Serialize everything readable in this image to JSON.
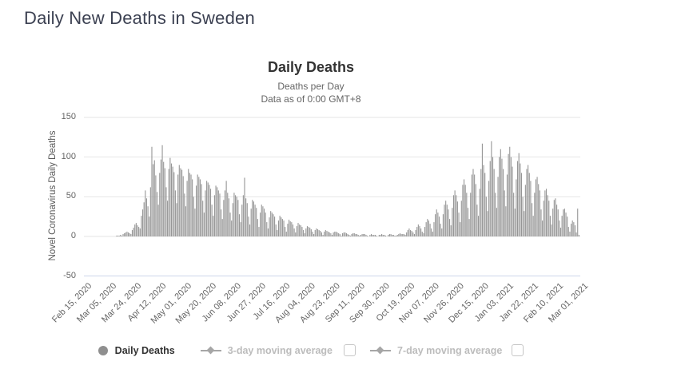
{
  "page": {
    "title": "Daily New Deaths in Sweden"
  },
  "chart": {
    "title": "Daily Deaths",
    "subtitle1": "Deaths per Day",
    "subtitle2": "Data as of 0:00 GMT+8",
    "y_axis_title": "Novel Coronavirus Daily Deaths"
  },
  "legend": {
    "items": [
      {
        "label": "Daily Deaths",
        "marker": "circle",
        "color": "#8f8f8f",
        "text_color": "#333333",
        "checkbox": false
      },
      {
        "label": "3-day moving average",
        "marker": "line-diamond",
        "color": "#a6a6a6",
        "text_color": "#bcbcbc",
        "checkbox": true,
        "checked": false
      },
      {
        "label": "7-day moving average",
        "marker": "line-diamond",
        "color": "#a6a6a6",
        "text_color": "#bcbcbc",
        "checkbox": true,
        "checked": false
      }
    ]
  },
  "chart_data": {
    "type": "bar",
    "title": "Daily Deaths",
    "series_name": "Daily Deaths",
    "x_start_date": "Feb 15, 2020",
    "x_end_date": "Mar 01, 2021",
    "x_tick_interval_days": 19,
    "x_tick_labels": [
      "Feb 15, 2020",
      "Mar 05, 2020",
      "Mar 24, 2020",
      "Apr 12, 2020",
      "May 01, 2020",
      "May 20, 2020",
      "Jun 08, 2020",
      "Jun 27, 2020",
      "Jul 16, 2020",
      "Aug 04, 2020",
      "Aug 23, 2020",
      "Sep 11, 2020",
      "Sep 30, 2020",
      "Oct 19, 2020",
      "Nov 07, 2020",
      "Nov 26, 2020",
      "Dec 15, 2020",
      "Jan 03, 2021",
      "Jan 22, 2021",
      "Feb 10, 2021",
      "Mar 01, 2021"
    ],
    "y_tick_labels": [
      "150",
      "100",
      "50",
      "0",
      "-50"
    ],
    "y_tick_values": [
      150,
      100,
      50,
      0,
      -50
    ],
    "ylim": [
      -50,
      150
    ],
    "grid": true,
    "legend_position": "bottom",
    "bar_color": "#969696",
    "grid_color": "#e6e6e6",
    "axis_line_color": "#ccd6eb",
    "values": [
      0,
      0,
      0,
      0,
      0,
      0,
      0,
      0,
      0,
      0,
      0,
      0,
      0,
      0,
      0,
      0,
      0,
      0,
      0,
      0,
      0,
      0,
      0,
      0,
      0,
      1,
      1,
      1,
      2,
      1,
      3,
      4,
      5,
      6,
      5,
      4,
      3,
      8,
      11,
      15,
      17,
      14,
      12,
      10,
      26,
      34,
      43,
      58,
      48,
      38,
      25,
      62,
      113,
      91,
      96,
      77,
      56,
      40,
      80,
      97,
      115,
      94,
      86,
      62,
      45,
      85,
      99,
      92,
      88,
      81,
      58,
      42,
      78,
      90,
      86,
      84,
      76,
      54,
      38,
      70,
      85,
      80,
      78,
      72,
      50,
      35,
      64,
      78,
      75,
      72,
      66,
      45,
      30,
      58,
      70,
      68,
      65,
      60,
      40,
      26,
      52,
      64,
      62,
      58,
      54,
      34,
      22,
      46,
      58,
      70,
      55,
      48,
      30,
      20,
      42,
      55,
      52,
      50,
      46,
      28,
      18,
      40,
      52,
      74,
      48,
      42,
      25,
      15,
      35,
      46,
      44,
      40,
      36,
      22,
      12,
      30,
      40,
      38,
      35,
      30,
      18,
      10,
      24,
      32,
      30,
      28,
      25,
      15,
      8,
      20,
      26,
      24,
      22,
      20,
      12,
      6,
      16,
      21,
      19,
      18,
      15,
      10,
      5,
      13,
      17,
      15,
      14,
      12,
      8,
      4,
      10,
      13,
      12,
      11,
      9,
      6,
      3,
      8,
      10,
      9,
      8,
      7,
      5,
      2,
      6,
      8,
      7,
      6,
      5,
      4,
      2,
      5,
      6,
      6,
      5,
      4,
      3,
      1,
      4,
      5,
      5,
      4,
      3,
      2,
      1,
      3,
      4,
      4,
      3,
      3,
      2,
      1,
      2,
      3,
      3,
      3,
      2,
      1,
      0,
      2,
      3,
      2,
      2,
      2,
      1,
      0,
      2,
      2,
      3,
      2,
      2,
      1,
      0,
      2,
      3,
      3,
      2,
      2,
      1,
      1,
      2,
      3,
      4,
      3,
      3,
      3,
      2,
      5,
      8,
      10,
      8,
      7,
      5,
      3,
      8,
      12,
      15,
      13,
      10,
      6,
      4,
      12,
      18,
      22,
      20,
      16,
      10,
      6,
      18,
      28,
      34,
      30,
      25,
      16,
      10,
      28,
      40,
      45,
      40,
      34,
      22,
      14,
      36,
      52,
      58,
      52,
      44,
      30,
      18,
      45,
      65,
      72,
      65,
      55,
      36,
      22,
      55,
      78,
      85,
      78,
      66,
      40,
      26,
      60,
      85,
      117,
      90,
      80,
      50,
      32,
      70,
      95,
      120,
      100,
      85,
      55,
      36,
      75,
      100,
      110,
      98,
      85,
      58,
      38,
      78,
      104,
      113,
      100,
      88,
      55,
      35,
      72,
      95,
      105,
      92,
      80,
      50,
      32,
      65,
      85,
      90,
      80,
      70,
      42,
      26,
      55,
      72,
      75,
      66,
      58,
      34,
      20,
      45,
      58,
      60,
      52,
      45,
      26,
      15,
      35,
      46,
      48,
      40,
      34,
      20,
      11,
      26,
      34,
      35,
      30,
      25,
      12,
      6,
      16,
      20,
      18,
      14,
      5,
      35,
      2,
      0
    ]
  }
}
